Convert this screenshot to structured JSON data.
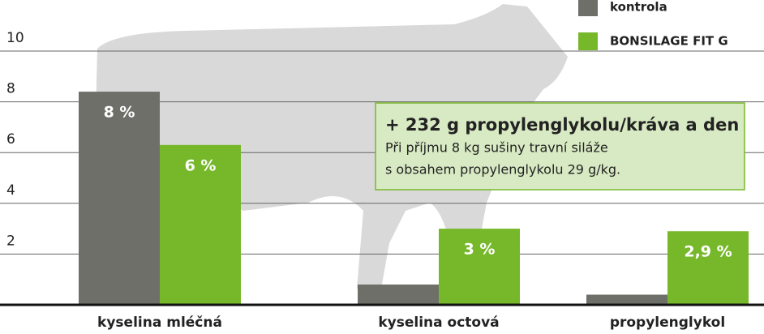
{
  "chart_data": {
    "type": "bar",
    "categories": [
      "kyselina mléčná",
      "kyselina octová",
      "propylenglykol"
    ],
    "series": [
      {
        "name": "kontrola",
        "color": "#6f6f6a",
        "values": [
          8.4,
          0.8,
          0.4
        ],
        "value_labels": [
          "8 %",
          null,
          null
        ]
      },
      {
        "name": "BONSILAGE FIT G",
        "color": "#76b82a",
        "values": [
          6.3,
          3,
          2.9
        ],
        "value_labels": [
          "6 %",
          "3 %",
          "2,9 %"
        ]
      }
    ],
    "ylim": [
      0,
      10
    ],
    "yticks": [
      2,
      4,
      6,
      8,
      10
    ],
    "grid": true,
    "legend": "top-right",
    "annotation": {
      "title": "+ 232 g propylenglykolu/kráva a den",
      "lines": [
        "Při příjmu 8 kg sušiny travní siláže",
        "s obsahem propylenglykolu 29 g/kg."
      ]
    }
  }
}
